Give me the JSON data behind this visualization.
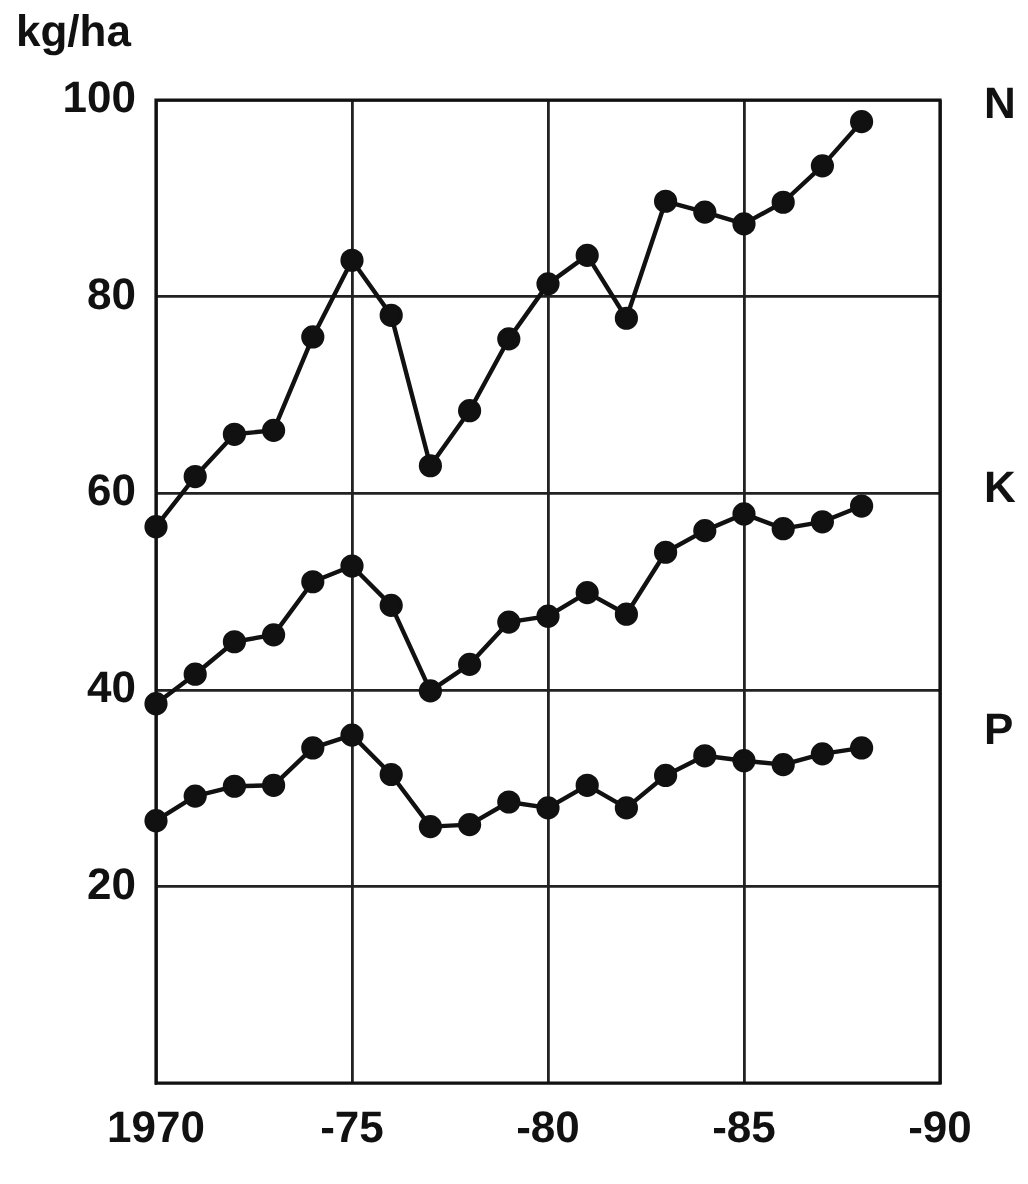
{
  "chart_data": {
    "type": "line",
    "ylabel": "kg/ha",
    "categories": [
      "1970",
      null,
      null,
      null,
      null,
      "-75",
      null,
      null,
      null,
      null,
      "-80",
      null,
      null,
      null,
      null,
      "-85",
      null,
      null,
      null,
      null,
      "-90"
    ],
    "series": [
      {
        "name": "N",
        "color": "#111111",
        "values": [
          56.6,
          61.7,
          66.0,
          66.4,
          75.9,
          83.7,
          78.1,
          62.8,
          68.4,
          75.7,
          81.3,
          84.2,
          77.8,
          89.7,
          88.6,
          87.4,
          89.6,
          93.3,
          97.8,
          null,
          null
        ]
      },
      {
        "name": "K",
        "color": "#111111",
        "values": [
          38.6,
          41.6,
          44.9,
          45.6,
          51.0,
          52.6,
          48.6,
          39.9,
          42.6,
          46.9,
          47.5,
          49.9,
          47.7,
          54.0,
          56.2,
          57.9,
          56.4,
          57.1,
          58.7,
          null,
          null
        ]
      },
      {
        "name": "P",
        "color": "#111111",
        "values": [
          26.7,
          29.2,
          30.2,
          30.3,
          34.1,
          35.4,
          31.4,
          26.1,
          26.3,
          28.6,
          28.0,
          30.3,
          28.0,
          31.3,
          33.3,
          32.8,
          32.4,
          33.5,
          34.1,
          null,
          null
        ]
      }
    ],
    "ylim": [
      0,
      100
    ],
    "yticks": [
      20,
      40,
      60,
      80,
      100
    ],
    "grid": true,
    "legend": false,
    "marker": "circle",
    "line_style": "solid"
  }
}
